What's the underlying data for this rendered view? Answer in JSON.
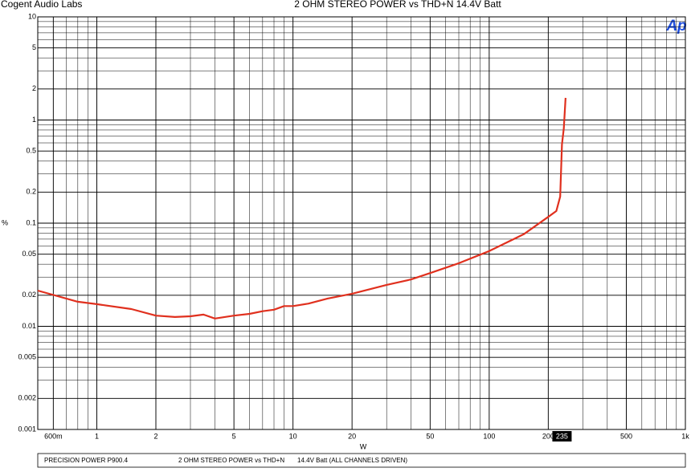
{
  "chart_data": {
    "type": "line",
    "header_left": "Cogent Audio Labs",
    "title": "2 OHM STEREO POWER vs THD+N   14.4V Batt",
    "logo": "Ap",
    "xlabel": "W",
    "ylabel": "%",
    "xscale": "log",
    "yscale": "log",
    "grid": true,
    "color": "#e0301e",
    "xlim": [
      0.5,
      1000
    ],
    "ylim": [
      0.001,
      10
    ],
    "xticks": [
      {
        "value": 0.6,
        "label": "600m"
      },
      1,
      2,
      5,
      10,
      20,
      50,
      100,
      200,
      500,
      {
        "value": 1000,
        "label": "1k"
      }
    ],
    "yticks": [
      10,
      5,
      2,
      1,
      0.5,
      0.2,
      0.1,
      0.05,
      0.02,
      0.01,
      0.005,
      0.002,
      0.001
    ],
    "x": [
      0.5,
      0.8,
      1,
      1.5,
      2,
      2.5,
      3,
      3.5,
      4,
      5,
      6,
      7,
      8,
      9,
      10,
      12,
      15,
      20,
      30,
      40,
      50,
      70,
      100,
      150,
      200,
      220,
      230,
      235,
      240,
      245
    ],
    "values": [
      0.0222,
      0.0173,
      0.0164,
      0.0147,
      0.0127,
      0.0123,
      0.0125,
      0.013,
      0.0119,
      0.0127,
      0.0132,
      0.014,
      0.0145,
      0.0157,
      0.0157,
      0.0166,
      0.0186,
      0.0207,
      0.0252,
      0.0285,
      0.0328,
      0.0409,
      0.0536,
      0.0781,
      0.115,
      0.131,
      0.181,
      0.58,
      0.83,
      1.64
    ],
    "cursor": 235,
    "footer": [
      "PRECISION POWER P900.4",
      "2 OHM STEREO POWER  vs THD+N",
      "14.4V Batt   (ALL CHANNELS DRIVEN)"
    ]
  }
}
